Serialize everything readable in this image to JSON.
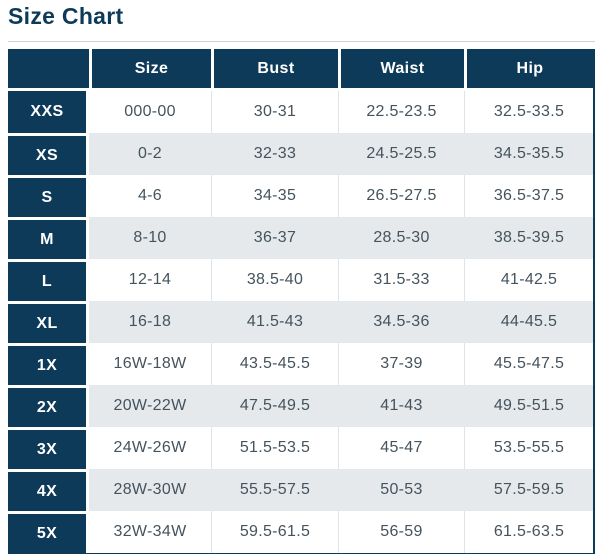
{
  "page_title": "Size Chart",
  "colors": {
    "navy": "#0e3a59",
    "stripe": "#e5e9ec",
    "cell_text": "#45535c",
    "header_text": "#ffffff",
    "column_separator": "#dfe4e8",
    "top_border": "#ccd2d7"
  },
  "chart_data": {
    "type": "table",
    "title": "Size Chart",
    "columns": [
      "Size",
      "Bust",
      "Waist",
      "Hip"
    ],
    "row_labels": [
      "XXS",
      "XS",
      "S",
      "M",
      "L",
      "XL",
      "1X",
      "2X",
      "3X",
      "4X",
      "5X"
    ],
    "rows": [
      {
        "label": "XXS",
        "size": "000-00",
        "bust": "30-31",
        "waist": "22.5-23.5",
        "hip": "32.5-33.5"
      },
      {
        "label": "XS",
        "size": "0-2",
        "bust": "32-33",
        "waist": "24.5-25.5",
        "hip": "34.5-35.5"
      },
      {
        "label": "S",
        "size": "4-6",
        "bust": "34-35",
        "waist": "26.5-27.5",
        "hip": "36.5-37.5"
      },
      {
        "label": "M",
        "size": "8-10",
        "bust": "36-37",
        "waist": "28.5-30",
        "hip": "38.5-39.5"
      },
      {
        "label": "L",
        "size": "12-14",
        "bust": "38.5-40",
        "waist": "31.5-33",
        "hip": "41-42.5"
      },
      {
        "label": "XL",
        "size": "16-18",
        "bust": "41.5-43",
        "waist": "34.5-36",
        "hip": "44-45.5"
      },
      {
        "label": "1X",
        "size": "16W-18W",
        "bust": "43.5-45.5",
        "waist": "37-39",
        "hip": "45.5-47.5"
      },
      {
        "label": "2X",
        "size": "20W-22W",
        "bust": "47.5-49.5",
        "waist": "41-43",
        "hip": "49.5-51.5"
      },
      {
        "label": "3X",
        "size": "24W-26W",
        "bust": "51.5-53.5",
        "waist": "45-47",
        "hip": "53.5-55.5"
      },
      {
        "label": "4X",
        "size": "28W-30W",
        "bust": "55.5-57.5",
        "waist": "50-53",
        "hip": "57.5-59.5"
      },
      {
        "label": "5X",
        "size": "32W-34W",
        "bust": "59.5-61.5",
        "waist": "56-59",
        "hip": "61.5-63.5"
      }
    ]
  }
}
